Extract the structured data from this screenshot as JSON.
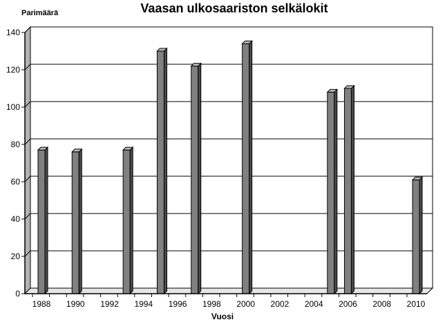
{
  "chart_data": {
    "type": "bar",
    "title": "Vaasan ulkosaariston selkälokit",
    "ylabel": "Parimäärä",
    "xlabel": "Vuosi",
    "ylim": [
      0,
      140
    ],
    "yticks": [
      0,
      20,
      40,
      60,
      80,
      100,
      120,
      140
    ],
    "xlim": [
      1988,
      2010
    ],
    "xticks": [
      1988,
      1990,
      1992,
      1994,
      1996,
      1998,
      2000,
      2002,
      2004,
      2006,
      2008,
      2010
    ],
    "x": [
      1988,
      1990,
      1993,
      1995,
      1997,
      2000,
      2005,
      2006,
      2010
    ],
    "values": [
      77,
      76,
      77,
      130,
      122,
      134,
      108,
      110,
      61
    ],
    "grid": true,
    "bar_color": "#808080",
    "bar_side_color": "#4a4a4a",
    "bar_top_color": "#b8b8b8"
  }
}
